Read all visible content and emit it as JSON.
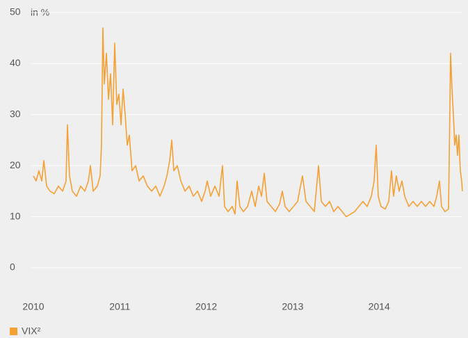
{
  "chart_data": {
    "type": "line",
    "unit_label": "in %",
    "xlim": [
      2010,
      2015
    ],
    "xticks": [
      2010,
      2011,
      2012,
      2013,
      2014
    ],
    "ylim": [
      0,
      50
    ],
    "yticks": [
      0,
      10,
      20,
      30,
      40,
      50
    ],
    "grid": true,
    "legend": "bottom-left",
    "x": [
      2010.0,
      2010.032,
      2010.064,
      2010.097,
      2010.121,
      2010.153,
      2010.193,
      2010.241,
      2010.29,
      2010.338,
      2010.378,
      2010.394,
      2010.418,
      2010.451,
      2010.499,
      2010.547,
      2010.595,
      2010.636,
      2010.66,
      2010.692,
      2010.74,
      2010.772,
      2010.788,
      2010.804,
      2010.821,
      2010.845,
      2010.869,
      2010.893,
      2010.917,
      2010.941,
      2010.965,
      2010.989,
      2011.014,
      2011.038,
      2011.062,
      2011.086,
      2011.11,
      2011.142,
      2011.183,
      2011.223,
      2011.271,
      2011.319,
      2011.368,
      2011.416,
      2011.464,
      2011.512,
      2011.545,
      2011.577,
      2011.601,
      2011.625,
      2011.665,
      2011.706,
      2011.754,
      2011.802,
      2011.85,
      2011.899,
      2011.947,
      2011.987,
      2012.011,
      2012.051,
      2012.1,
      2012.148,
      2012.188,
      2012.212,
      2012.253,
      2012.301,
      2012.333,
      2012.357,
      2012.389,
      2012.43,
      2012.478,
      2012.526,
      2012.566,
      2012.607,
      2012.639,
      2012.671,
      2012.703,
      2012.751,
      2012.8,
      2012.848,
      2012.88,
      2012.912,
      2012.96,
      2013.009,
      2013.057,
      2013.113,
      2013.154,
      2013.202,
      2013.25,
      2013.299,
      2013.331,
      2013.379,
      2013.427,
      2013.475,
      2013.524,
      2013.572,
      2013.62,
      2013.668,
      2013.717,
      2013.765,
      2013.813,
      2013.861,
      2013.91,
      2013.942,
      2013.966,
      2013.99,
      2014.022,
      2014.071,
      2014.111,
      2014.143,
      2014.167,
      2014.199,
      2014.232,
      2014.264,
      2014.296,
      2014.344,
      2014.393,
      2014.441,
      2014.489,
      2014.537,
      2014.585,
      2014.634,
      2014.666,
      2014.698,
      2014.722,
      2014.762,
      2014.803,
      2014.827,
      2014.843,
      2014.859,
      2014.875,
      2014.891,
      2014.907,
      2014.923,
      2014.939,
      2014.955,
      2014.963
    ],
    "series": [
      {
        "name": "VIX²",
        "color": "#f5a033",
        "values": [
          18,
          17,
          19,
          17,
          21,
          16,
          15,
          14.5,
          16,
          15,
          17,
          28,
          18,
          15,
          14,
          16,
          15,
          17,
          20,
          15,
          16,
          18,
          24,
          47,
          36,
          42,
          33,
          38,
          28,
          44,
          32,
          34,
          28,
          35,
          30,
          24,
          26,
          19,
          20,
          17,
          18,
          16,
          15,
          16,
          14,
          16,
          18,
          21,
          25,
          19,
          20,
          17,
          15,
          16,
          14,
          15,
          13,
          15,
          17,
          14,
          16,
          14,
          20,
          12,
          11,
          12,
          10.5,
          17,
          12,
          11,
          12,
          15,
          12,
          16,
          14,
          18.5,
          13,
          12,
          11,
          12.5,
          15,
          12,
          11,
          12,
          13,
          18,
          13,
          12,
          11,
          20,
          13,
          12,
          13,
          11,
          12,
          11,
          10,
          10.5,
          11,
          12,
          13,
          12,
          14,
          17,
          24,
          14,
          12,
          11.5,
          13,
          19,
          14,
          18,
          15,
          17,
          14,
          12,
          13,
          12,
          13,
          12,
          13,
          12,
          14,
          17,
          12,
          11,
          11.5,
          42,
          35,
          30,
          24,
          26,
          22,
          26,
          19,
          17,
          15
        ]
      }
    ]
  }
}
